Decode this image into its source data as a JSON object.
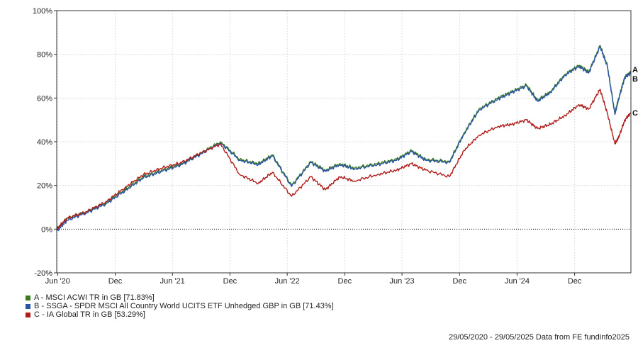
{
  "chart_data": {
    "type": "line",
    "title": "",
    "xlabel": "",
    "ylabel": "",
    "ylim": [
      -20,
      100
    ],
    "y_ticks": [
      "100%",
      "80%",
      "60%",
      "40%",
      "20%",
      "0%",
      "-20%"
    ],
    "y_tick_values": [
      100,
      80,
      60,
      40,
      20,
      0,
      -20
    ],
    "x_ticks": [
      "Jun '20",
      "Dec",
      "Jun '21",
      "Dec",
      "Jun '22",
      "Dec",
      "Jun '23",
      "Dec",
      "Jun '24",
      "Dec"
    ],
    "x_tick_dates": [
      "2020-06-01",
      "2020-12-01",
      "2021-06-01",
      "2021-12-01",
      "2022-06-01",
      "2022-12-01",
      "2023-06-01",
      "2023-12-01",
      "2024-06-01",
      "2024-12-01"
    ],
    "x_range": [
      "2020-05-29",
      "2025-05-29"
    ],
    "grid": true,
    "zero_line": true,
    "legend_placement": "bottom-left",
    "series": [
      {
        "name": "A - MSCI ACWI TR in GB [71.83%]",
        "end_label": "A",
        "color": "#3a7a1e",
        "x": [
          "2020-05-29",
          "2020-07-01",
          "2020-09-01",
          "2020-11-01",
          "2021-01-01",
          "2021-03-01",
          "2021-05-01",
          "2021-07-01",
          "2021-09-01",
          "2021-11-01",
          "2022-01-01",
          "2022-03-01",
          "2022-04-15",
          "2022-06-15",
          "2022-08-15",
          "2022-09-30",
          "2022-11-15",
          "2023-01-01",
          "2023-03-15",
          "2023-05-15",
          "2023-07-01",
          "2023-08-15",
          "2023-10-30",
          "2023-12-15",
          "2024-02-01",
          "2024-04-01",
          "2024-05-15",
          "2024-07-01",
          "2024-08-05",
          "2024-09-15",
          "2024-11-01",
          "2024-12-15",
          "2025-01-15",
          "2025-02-20",
          "2025-03-15",
          "2025-04-08",
          "2025-04-20",
          "2025-05-10",
          "2025-05-29"
        ],
        "y": [
          0,
          5,
          8,
          12,
          18,
          24,
          27,
          30,
          35,
          40,
          32,
          30,
          34,
          20,
          31,
          27,
          30,
          28,
          30,
          32,
          36,
          32,
          31,
          44,
          55,
          60,
          63,
          66,
          59,
          63,
          71,
          75,
          72,
          84,
          75,
          53,
          60,
          70,
          71.83
        ]
      },
      {
        "name": "B - SSGA - SPDR MSCI All Country World UCITS ETF Unhedged GBP in GB [71.43%]",
        "end_label": "B",
        "color": "#2a55a4",
        "x": [
          "2020-05-29",
          "2020-07-01",
          "2020-09-01",
          "2020-11-01",
          "2021-01-01",
          "2021-03-01",
          "2021-05-01",
          "2021-07-01",
          "2021-09-01",
          "2021-11-01",
          "2022-01-01",
          "2022-03-01",
          "2022-04-15",
          "2022-06-15",
          "2022-08-15",
          "2022-09-30",
          "2022-11-15",
          "2023-01-01",
          "2023-03-15",
          "2023-05-15",
          "2023-07-01",
          "2023-08-15",
          "2023-10-30",
          "2023-12-15",
          "2024-02-01",
          "2024-04-01",
          "2024-05-15",
          "2024-07-01",
          "2024-08-05",
          "2024-09-15",
          "2024-11-01",
          "2024-12-15",
          "2025-01-15",
          "2025-02-20",
          "2025-03-15",
          "2025-04-08",
          "2025-04-20",
          "2025-05-10",
          "2025-05-29"
        ],
        "y": [
          -1,
          4,
          7.5,
          11.5,
          17.5,
          23.5,
          26.5,
          29.5,
          34.5,
          39.5,
          31.5,
          29.5,
          33.5,
          19.5,
          30.5,
          26.5,
          29.5,
          27.5,
          29.5,
          31.5,
          35.5,
          31.5,
          30.5,
          43.5,
          54.5,
          59.5,
          62.5,
          65.5,
          58.5,
          62.5,
          70.5,
          74.5,
          71.5,
          83.5,
          74.5,
          52.5,
          59.5,
          69.5,
          71.43
        ]
      },
      {
        "name": "C - IA Global TR in GB [53.29%]",
        "end_label": "C",
        "color": "#b01c1c",
        "x": [
          "2020-05-29",
          "2020-07-01",
          "2020-09-01",
          "2020-11-01",
          "2021-01-01",
          "2021-03-01",
          "2021-05-01",
          "2021-07-01",
          "2021-09-01",
          "2021-11-01",
          "2022-01-01",
          "2022-03-01",
          "2022-04-15",
          "2022-06-15",
          "2022-08-15",
          "2022-09-30",
          "2022-11-15",
          "2023-01-01",
          "2023-03-15",
          "2023-05-15",
          "2023-07-01",
          "2023-08-15",
          "2023-10-30",
          "2023-12-15",
          "2024-02-01",
          "2024-04-01",
          "2024-05-15",
          "2024-07-01",
          "2024-08-05",
          "2024-09-15",
          "2024-11-01",
          "2024-12-15",
          "2025-01-15",
          "2025-02-20",
          "2025-03-15",
          "2025-04-08",
          "2025-04-20",
          "2025-05-10",
          "2025-05-29"
        ],
        "y": [
          0,
          5,
          8,
          12.5,
          19,
          25,
          28,
          30.5,
          35,
          39,
          25,
          21,
          26,
          15,
          24,
          18,
          24,
          22,
          25,
          27,
          30,
          27,
          24,
          36,
          43,
          47,
          48,
          50,
          46,
          48,
          52,
          57,
          55,
          64,
          53,
          39,
          42,
          50,
          53.29
        ]
      }
    ]
  },
  "footer": {
    "date_range": "29/05/2020 - 29/05/2025",
    "source": "Data from FE fundinfo2025"
  }
}
